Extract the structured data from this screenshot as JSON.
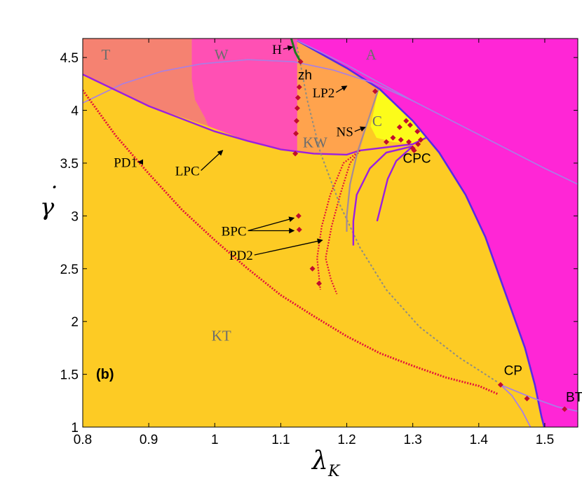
{
  "chart_data": {
    "type": "scatter",
    "panel_label": "(b)",
    "xlabel": "λ",
    "xlabel_sub": "K",
    "ylabel": "γ",
    "ylabel_accent": "˙",
    "xlim": [
      0.8,
      1.55
    ],
    "ylim": [
      1.0,
      4.68
    ],
    "xticks": [
      "0.8",
      "0.9",
      "1",
      "1.1",
      "1.2",
      "1.3",
      "1.4",
      "1.5"
    ],
    "yticks": [
      "1",
      "1.5",
      "2",
      "2.5",
      "3",
      "3.5",
      "4",
      "4.5"
    ],
    "colors": {
      "KT": "#fdcb24",
      "T": "#f58271",
      "W": "#ff50b4",
      "A": "#ff26d6",
      "KW": "#ffa34d",
      "C": "#fcfc1a",
      "curve_violet": "#9b1fe0",
      "curve_blue": "#5a29e6",
      "curve_light": "#a77fe6",
      "pd_red": "#e2143a",
      "grey_line": "#8f8d82",
      "green_line": "#1f7a1f",
      "marker": "#c00d2e"
    },
    "region_labels": [
      {
        "text": "T",
        "x": 0.835,
        "y": 4.48
      },
      {
        "text": "W",
        "x": 1.01,
        "y": 4.48
      },
      {
        "text": "A",
        "x": 1.237,
        "y": 4.48
      },
      {
        "text": "KW",
        "x": 1.152,
        "y": 3.65
      },
      {
        "text": "C",
        "x": 1.246,
        "y": 3.85
      },
      {
        "text": "KT",
        "x": 1.01,
        "y": 1.82
      }
    ],
    "annotations": [
      {
        "text": "H",
        "label_x": 1.087,
        "label_y": 4.58,
        "tip_x": 1.118,
        "tip_y": 4.6
      },
      {
        "text": "zh",
        "label_x": 1.126,
        "label_y": 4.34,
        "tip_x": null,
        "tip_y": null
      },
      {
        "text": "LP2",
        "label_x": 1.148,
        "label_y": 4.17,
        "tip_x": 1.2,
        "tip_y": 4.23
      },
      {
        "text": "NS",
        "label_x": 1.184,
        "label_y": 3.8,
        "tip_x": 1.228,
        "tip_y": 3.84
      },
      {
        "text": "CPC",
        "label_x": 1.285,
        "label_y": 3.55,
        "tip_x": null,
        "tip_y": null
      },
      {
        "text": "PD1",
        "label_x": 0.847,
        "label_y": 3.51,
        "tip_x": 0.884,
        "tip_y": 3.51
      },
      {
        "text": "LPC",
        "label_x": 0.94,
        "label_y": 3.43,
        "tip_x": 1.012,
        "tip_y": 3.62
      },
      {
        "text": "BPC",
        "label_x": 1.01,
        "label_y": 2.86,
        "tip_x": 1.12,
        "tip_y": 2.98
      },
      {
        "text": "PD2",
        "label_x": 1.022,
        "label_y": 2.63,
        "tip_x": 1.163,
        "tip_y": 2.77
      },
      {
        "text": "CP",
        "label_x": 1.438,
        "label_y": 1.54,
        "tip_x": null,
        "tip_y": null
      },
      {
        "text": "BT",
        "label_x": 1.532,
        "label_y": 1.29,
        "tip_x": null,
        "tip_y": null
      }
    ],
    "points": [
      {
        "x": 1.13,
        "y": 4.46
      },
      {
        "x": 1.243,
        "y": 4.18
      },
      {
        "x": 1.128,
        "y": 4.22
      },
      {
        "x": 1.126,
        "y": 4.12
      },
      {
        "x": 1.125,
        "y": 4.02
      },
      {
        "x": 1.124,
        "y": 3.9
      },
      {
        "x": 1.123,
        "y": 3.78
      },
      {
        "x": 1.122,
        "y": 3.59
      },
      {
        "x": 1.26,
        "y": 3.7
      },
      {
        "x": 1.27,
        "y": 3.74
      },
      {
        "x": 1.282,
        "y": 3.72
      },
      {
        "x": 1.294,
        "y": 3.7
      },
      {
        "x": 1.3,
        "y": 3.64
      },
      {
        "x": 1.308,
        "y": 3.68
      },
      {
        "x": 1.312,
        "y": 3.72
      },
      {
        "x": 1.307,
        "y": 3.8
      },
      {
        "x": 1.296,
        "y": 3.86
      },
      {
        "x": 1.28,
        "y": 3.84
      },
      {
        "x": 1.29,
        "y": 3.9
      },
      {
        "x": 1.302,
        "y": 3.62
      },
      {
        "x": 1.127,
        "y": 3.0
      },
      {
        "x": 1.128,
        "y": 2.87
      },
      {
        "x": 1.148,
        "y": 2.5
      },
      {
        "x": 1.158,
        "y": 2.36
      },
      {
        "x": 1.433,
        "y": 1.4
      },
      {
        "x": 1.473,
        "y": 1.27
      },
      {
        "x": 1.53,
        "y": 1.17
      }
    ]
  }
}
